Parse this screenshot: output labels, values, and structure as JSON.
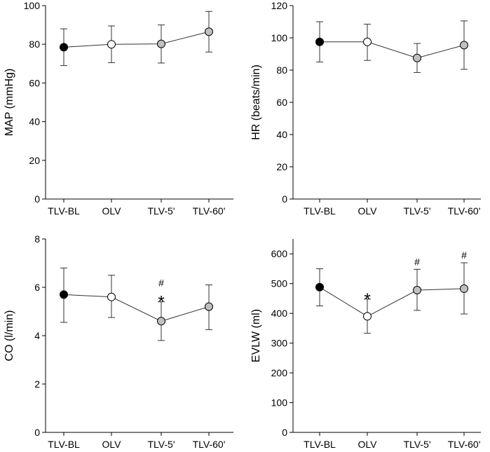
{
  "chart_data": [
    {
      "type": "line",
      "categories": [
        "TLV-BL",
        "OLV",
        "TLV-5'",
        "TLV-60'"
      ],
      "ylabel": "MAP (mmHg)",
      "ylim": [
        0,
        100
      ],
      "yticks": [
        0,
        20,
        40,
        60,
        80,
        100
      ],
      "values": [
        78.5,
        80,
        80.2,
        86.5
      ],
      "err_low": [
        69,
        70.5,
        70.3,
        76
      ],
      "err_high": [
        88,
        89.5,
        90,
        97
      ],
      "markers": [
        "black",
        "white",
        "gray",
        "gray"
      ],
      "annotations": [
        {
          "category": "TLV-BL",
          "text": ""
        },
        {
          "category": "OLV",
          "text": ""
        },
        {
          "category": "TLV-5'",
          "text": ""
        },
        {
          "category": "TLV-60'",
          "text": ""
        }
      ]
    },
    {
      "type": "line",
      "categories": [
        "TLV-BL",
        "OLV",
        "TLV-5'",
        "TLV-60'"
      ],
      "ylabel": "HR (beats/min)",
      "ylim": [
        0,
        120
      ],
      "yticks": [
        0,
        20,
        40,
        60,
        80,
        100,
        120
      ],
      "values": [
        97.5,
        97.5,
        87.5,
        95.5
      ],
      "err_low": [
        85,
        86,
        78.5,
        80.5
      ],
      "err_high": [
        110,
        108.5,
        96.5,
        110.5
      ],
      "markers": [
        "black",
        "white",
        "gray",
        "gray"
      ],
      "annotations": [
        {
          "category": "TLV-BL",
          "text": ""
        },
        {
          "category": "OLV",
          "text": ""
        },
        {
          "category": "TLV-5'",
          "text": ""
        },
        {
          "category": "TLV-60'",
          "text": ""
        }
      ]
    },
    {
      "type": "line",
      "categories": [
        "TLV-BL",
        "OLV",
        "TLV-5'",
        "TLV-60'"
      ],
      "ylabel": "CO (l/min)",
      "ylim": [
        0,
        8
      ],
      "yticks": [
        0,
        2,
        4,
        6,
        8
      ],
      "values": [
        5.7,
        5.6,
        4.6,
        5.2
      ],
      "err_low": [
        4.55,
        4.75,
        3.8,
        4.25
      ],
      "err_high": [
        6.8,
        6.5,
        5.4,
        6.1
      ],
      "markers": [
        "black",
        "white",
        "gray",
        "gray"
      ],
      "annotations": [
        {
          "category": "TLV-BL",
          "text": ""
        },
        {
          "category": "OLV",
          "text": ""
        },
        {
          "category": "TLV-5'",
          "text": "#"
        },
        {
          "category": "TLV-5'",
          "text": "*"
        },
        {
          "category": "TLV-60'",
          "text": ""
        }
      ]
    },
    {
      "type": "line",
      "categories": [
        "TLV-BL",
        "OLV",
        "TLV-5'",
        "TLV-60'"
      ],
      "ylabel": "EVLW (ml)",
      "ylim": [
        0,
        650
      ],
      "yticks": [
        0,
        100,
        200,
        300,
        400,
        500,
        600
      ],
      "values": [
        488,
        390,
        478,
        483
      ],
      "err_low": [
        425,
        333,
        410,
        398
      ],
      "err_high": [
        550,
        448,
        548,
        570
      ],
      "markers": [
        "black",
        "white",
        "gray",
        "gray"
      ],
      "annotations": [
        {
          "category": "TLV-BL",
          "text": ""
        },
        {
          "category": "OLV",
          "text": "*"
        },
        {
          "category": "TLV-5'",
          "text": "#"
        },
        {
          "category": "TLV-60'",
          "text": "#"
        }
      ]
    }
  ],
  "colors": {
    "black": "#000000",
    "white": "#ffffff",
    "gray": "#c0c0c0",
    "line": "#333333"
  }
}
